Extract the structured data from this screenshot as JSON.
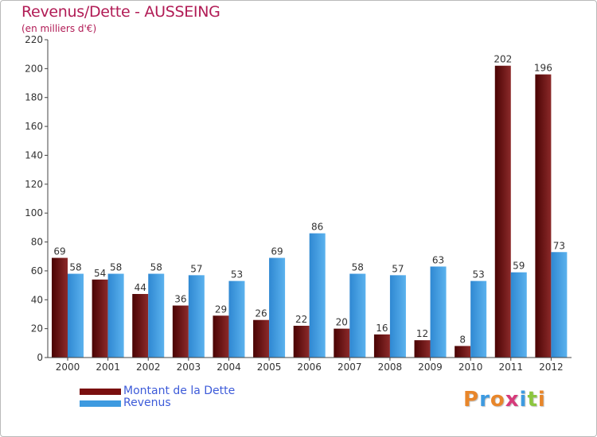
{
  "title": "Revenus/Dette - AUSSEING",
  "subtitle": "(en milliers d'€)",
  "colors": {
    "debt": "#7a0f0f",
    "revenue": "#3d9ae0",
    "title": "#b11b55",
    "legend_text": "#3d5bd9"
  },
  "chart_data": {
    "type": "bar",
    "title": "Revenus/Dette - AUSSEING",
    "ylabel": "(en milliers d'€)",
    "categories": [
      "2000",
      "2001",
      "2002",
      "2003",
      "2004",
      "2005",
      "2006",
      "2007",
      "2008",
      "2009",
      "2010",
      "2011",
      "2012"
    ],
    "series": [
      {
        "name": "Montant de la Dette",
        "values": [
          69,
          54,
          44,
          36,
          29,
          26,
          22,
          20,
          16,
          12,
          8,
          202,
          196
        ]
      },
      {
        "name": "Revenus",
        "values": [
          58,
          58,
          58,
          57,
          53,
          69,
          86,
          58,
          57,
          63,
          53,
          59,
          73
        ]
      }
    ],
    "ylim": [
      0,
      220
    ],
    "yticks": [
      0,
      20,
      40,
      60,
      80,
      100,
      120,
      140,
      160,
      180,
      200,
      220
    ],
    "grid": false,
    "legend_position": "bottom-left"
  },
  "legend": {
    "items": [
      {
        "label": "Montant de la Dette",
        "color": "#7a0f0f"
      },
      {
        "label": "Revenus",
        "color": "#3d9ae0"
      }
    ]
  },
  "logo": {
    "text": "Proxiti",
    "letter_colors": [
      "#e8862a",
      "#3d9ae0",
      "#e8862a",
      "#d63a7a",
      "#3d9ae0",
      "#8cc63f",
      "#e8862a"
    ]
  }
}
